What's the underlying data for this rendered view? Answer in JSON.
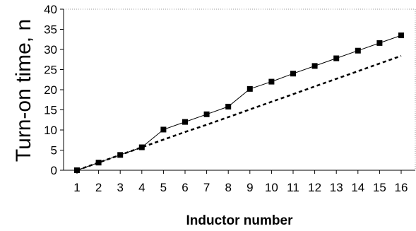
{
  "chart_data": {
    "type": "line",
    "xlabel": "Inductor number",
    "ylabel": "Turn-on time, n",
    "x": [
      1,
      2,
      3,
      4,
      5,
      6,
      7,
      8,
      9,
      10,
      11,
      12,
      13,
      14,
      15,
      16
    ],
    "ylim": [
      0,
      40
    ],
    "yticks": [
      0,
      5,
      10,
      15,
      20,
      25,
      30,
      35,
      40
    ],
    "grid": false,
    "series": [
      {
        "style": "solid line with square markers",
        "color": "#000000",
        "values": [
          0,
          1.9,
          3.8,
          5.7,
          10.1,
          12.0,
          13.9,
          15.8,
          20.2,
          22.0,
          24.0,
          25.9,
          27.8,
          29.7,
          31.6,
          33.5
        ]
      },
      {
        "style": "dashed line",
        "color": "#000000",
        "values": [
          0,
          1.9,
          3.8,
          5.7,
          7.6,
          9.5,
          11.3,
          13.2,
          15.1,
          17.0,
          18.9,
          20.8,
          22.7,
          24.6,
          26.5,
          28.4
        ]
      }
    ]
  }
}
